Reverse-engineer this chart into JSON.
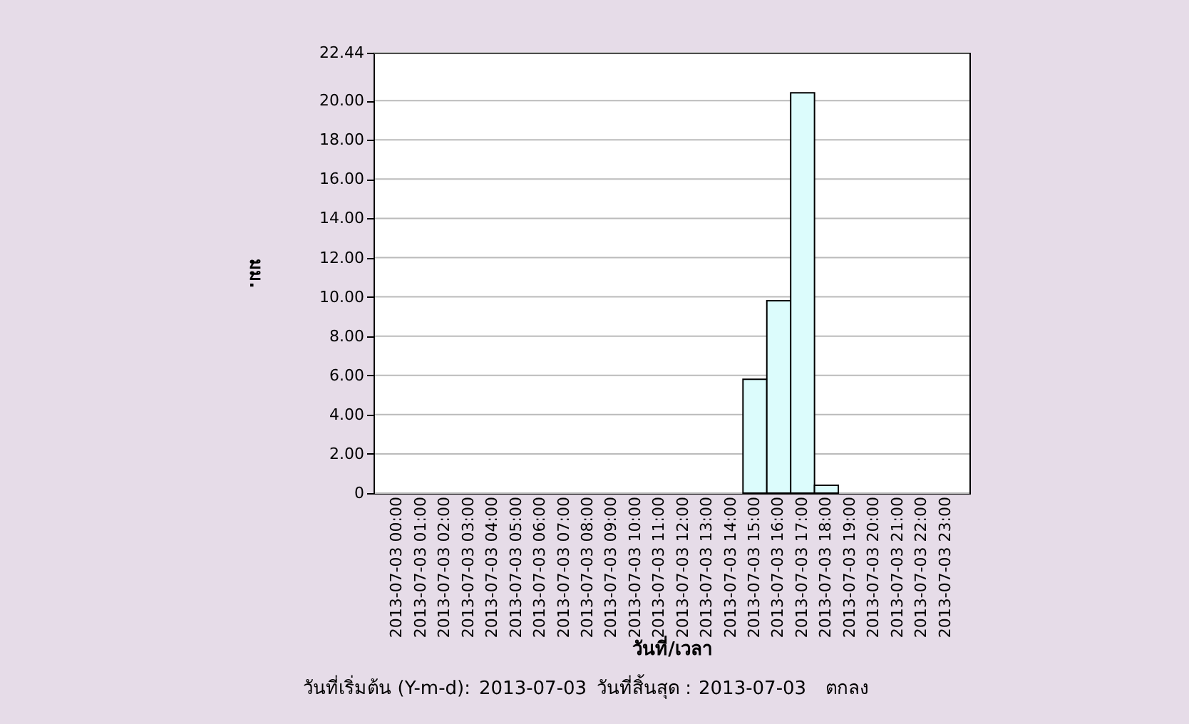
{
  "chart_data": {
    "type": "bar",
    "categories": [
      "2013-07-03 00:00",
      "2013-07-03 01:00",
      "2013-07-03 02:00",
      "2013-07-03 03:00",
      "2013-07-03 04:00",
      "2013-07-03 05:00",
      "2013-07-03 06:00",
      "2013-07-03 07:00",
      "2013-07-03 08:00",
      "2013-07-03 09:00",
      "2013-07-03 10:00",
      "2013-07-03 11:00",
      "2013-07-03 12:00",
      "2013-07-03 13:00",
      "2013-07-03 14:00",
      "2013-07-03 15:00",
      "2013-07-03 16:00",
      "2013-07-03 17:00",
      "2013-07-03 18:00",
      "2013-07-03 19:00",
      "2013-07-03 20:00",
      "2013-07-03 21:00",
      "2013-07-03 22:00",
      "2013-07-03 23:00"
    ],
    "values": [
      0,
      0,
      0,
      0,
      0,
      0,
      0,
      0,
      0,
      0,
      0,
      0,
      0,
      0,
      0,
      5.8,
      9.8,
      20.4,
      0.4,
      0,
      0,
      0,
      0,
      0
    ],
    "color": "#dcfcfc",
    "xlabel": "วันที่/เวลา",
    "ylabel": "มม.",
    "ylim": [
      0,
      22.44
    ],
    "yticks": [
      0,
      {
        "value": 2,
        "label": "2.00"
      },
      {
        "value": 4,
        "label": "4.00"
      },
      {
        "value": 6,
        "label": "6.00"
      },
      {
        "value": 8,
        "label": "8.00"
      },
      {
        "value": 10,
        "label": "10.00"
      },
      {
        "value": 12,
        "label": "12.00"
      },
      {
        "value": 14,
        "label": "14.00"
      },
      {
        "value": 16,
        "label": "16.00"
      },
      {
        "value": 18,
        "label": "18.00"
      },
      {
        "value": 20,
        "label": "20.00"
      },
      22.44
    ],
    "grid": "y",
    "annotations": [
      "วันที่เริ่มต้น (Y-m-d):",
      "2013-07-03",
      "วันที่สิ้นสุด :",
      "2013-07-03",
      "ตกลง"
    ]
  }
}
